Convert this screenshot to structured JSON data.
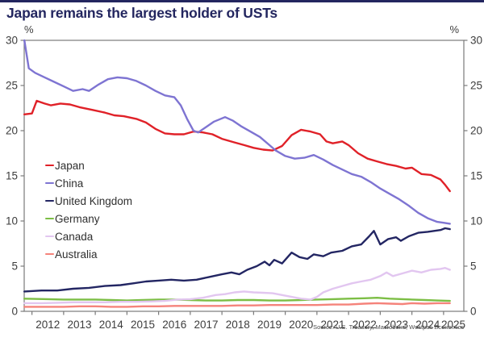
{
  "page": {
    "title": "Japan remains the largest holder of USTs",
    "source": "Source: U.S. Treasury, Macrobond, Westpac Economics"
  },
  "chart_data": {
    "type": "line",
    "title": "Japan remains the largest holder of USTs",
    "unit_left": "%",
    "unit_right": "%",
    "ylim": [
      0,
      30
    ],
    "y_ticks": [
      0,
      5,
      10,
      15,
      20,
      25,
      30
    ],
    "x_domain": [
      2011.755,
      2025.64
    ],
    "x_year_ticks": [
      2012,
      2013,
      2014,
      2015,
      2016,
      2017,
      2018,
      2019,
      2020,
      2021,
      2022,
      2023,
      2024,
      2025
    ],
    "x_labels": [
      "2012",
      "2013",
      "2014",
      "2015",
      "2016",
      "2017",
      "2018",
      "2019",
      "2020",
      "2021",
      "2022",
      "2023",
      "2024",
      "2025"
    ],
    "grid": false,
    "legend_position": "middle-left",
    "axis_color": "#7a7a7a",
    "label_color": "#3d3d3d",
    "series": [
      {
        "name": "Japan",
        "color": "#e02128",
        "points": [
          [
            2011.76,
            21.8
          ],
          [
            2012.0,
            21.9
          ],
          [
            2012.15,
            23.3
          ],
          [
            2012.4,
            23.0
          ],
          [
            2012.6,
            22.8
          ],
          [
            2012.9,
            23.0
          ],
          [
            2013.2,
            22.9
          ],
          [
            2013.5,
            22.6
          ],
          [
            2013.9,
            22.3
          ],
          [
            2014.3,
            22.0
          ],
          [
            2014.6,
            21.7
          ],
          [
            2014.9,
            21.6
          ],
          [
            2015.3,
            21.3
          ],
          [
            2015.6,
            20.9
          ],
          [
            2015.9,
            20.2
          ],
          [
            2016.2,
            19.7
          ],
          [
            2016.5,
            19.6
          ],
          [
            2016.8,
            19.6
          ],
          [
            2017.1,
            19.9
          ],
          [
            2017.4,
            19.8
          ],
          [
            2017.7,
            19.6
          ],
          [
            2018.0,
            19.1
          ],
          [
            2018.4,
            18.7
          ],
          [
            2018.7,
            18.4
          ],
          [
            2019.0,
            18.1
          ],
          [
            2019.3,
            17.9
          ],
          [
            2019.6,
            17.8
          ],
          [
            2019.9,
            18.3
          ],
          [
            2020.2,
            19.5
          ],
          [
            2020.5,
            20.1
          ],
          [
            2020.8,
            19.9
          ],
          [
            2021.1,
            19.6
          ],
          [
            2021.3,
            18.8
          ],
          [
            2021.5,
            18.6
          ],
          [
            2021.8,
            18.8
          ],
          [
            2022.0,
            18.4
          ],
          [
            2022.3,
            17.5
          ],
          [
            2022.6,
            16.9
          ],
          [
            2022.9,
            16.6
          ],
          [
            2023.2,
            16.3
          ],
          [
            2023.5,
            16.1
          ],
          [
            2023.8,
            15.8
          ],
          [
            2024.0,
            15.9
          ],
          [
            2024.3,
            15.2
          ],
          [
            2024.6,
            15.1
          ],
          [
            2024.9,
            14.6
          ],
          [
            2025.05,
            14.0
          ],
          [
            2025.2,
            13.3
          ]
        ]
      },
      {
        "name": "China",
        "color": "#7e74d2",
        "points": [
          [
            2011.76,
            30.0
          ],
          [
            2011.9,
            26.9
          ],
          [
            2012.1,
            26.4
          ],
          [
            2012.4,
            25.9
          ],
          [
            2012.7,
            25.4
          ],
          [
            2013.0,
            24.9
          ],
          [
            2013.3,
            24.4
          ],
          [
            2013.6,
            24.6
          ],
          [
            2013.8,
            24.4
          ],
          [
            2014.1,
            25.1
          ],
          [
            2014.4,
            25.7
          ],
          [
            2014.7,
            25.9
          ],
          [
            2015.0,
            25.8
          ],
          [
            2015.3,
            25.5
          ],
          [
            2015.6,
            25.0
          ],
          [
            2015.9,
            24.4
          ],
          [
            2016.2,
            23.9
          ],
          [
            2016.5,
            23.7
          ],
          [
            2016.7,
            22.8
          ],
          [
            2016.9,
            21.3
          ],
          [
            2017.1,
            20.0
          ],
          [
            2017.25,
            19.8
          ],
          [
            2017.5,
            20.4
          ],
          [
            2017.75,
            21.0
          ],
          [
            2018.1,
            21.5
          ],
          [
            2018.35,
            21.1
          ],
          [
            2018.6,
            20.5
          ],
          [
            2018.9,
            19.9
          ],
          [
            2019.2,
            19.3
          ],
          [
            2019.5,
            18.4
          ],
          [
            2019.7,
            17.8
          ],
          [
            2020.0,
            17.2
          ],
          [
            2020.3,
            16.9
          ],
          [
            2020.6,
            17.0
          ],
          [
            2020.9,
            17.3
          ],
          [
            2021.2,
            16.8
          ],
          [
            2021.5,
            16.2
          ],
          [
            2021.8,
            15.7
          ],
          [
            2022.1,
            15.2
          ],
          [
            2022.4,
            14.9
          ],
          [
            2022.7,
            14.3
          ],
          [
            2023.0,
            13.6
          ],
          [
            2023.3,
            13.0
          ],
          [
            2023.6,
            12.4
          ],
          [
            2023.9,
            11.7
          ],
          [
            2024.2,
            10.9
          ],
          [
            2024.5,
            10.3
          ],
          [
            2024.8,
            9.9
          ],
          [
            2025.0,
            9.8
          ],
          [
            2025.2,
            9.7
          ]
        ]
      },
      {
        "name": "United Kingdom",
        "color": "#232663",
        "points": [
          [
            2011.76,
            2.2
          ],
          [
            2012.3,
            2.3
          ],
          [
            2012.8,
            2.3
          ],
          [
            2013.3,
            2.5
          ],
          [
            2013.8,
            2.6
          ],
          [
            2014.3,
            2.8
          ],
          [
            2014.8,
            2.9
          ],
          [
            2015.2,
            3.1
          ],
          [
            2015.6,
            3.3
          ],
          [
            2016.0,
            3.4
          ],
          [
            2016.4,
            3.5
          ],
          [
            2016.8,
            3.4
          ],
          [
            2017.2,
            3.5
          ],
          [
            2017.6,
            3.8
          ],
          [
            2018.0,
            4.1
          ],
          [
            2018.3,
            4.3
          ],
          [
            2018.55,
            4.1
          ],
          [
            2018.8,
            4.6
          ],
          [
            2019.1,
            5.0
          ],
          [
            2019.35,
            5.5
          ],
          [
            2019.5,
            5.1
          ],
          [
            2019.65,
            5.7
          ],
          [
            2019.9,
            5.3
          ],
          [
            2020.2,
            6.5
          ],
          [
            2020.45,
            6.0
          ],
          [
            2020.7,
            5.8
          ],
          [
            2020.9,
            6.3
          ],
          [
            2021.2,
            6.1
          ],
          [
            2021.45,
            6.5
          ],
          [
            2021.8,
            6.7
          ],
          [
            2022.1,
            7.2
          ],
          [
            2022.4,
            7.4
          ],
          [
            2022.65,
            8.3
          ],
          [
            2022.8,
            8.9
          ],
          [
            2023.0,
            7.4
          ],
          [
            2023.25,
            8.0
          ],
          [
            2023.5,
            8.2
          ],
          [
            2023.65,
            7.8
          ],
          [
            2023.9,
            8.3
          ],
          [
            2024.2,
            8.7
          ],
          [
            2024.5,
            8.8
          ],
          [
            2024.7,
            8.9
          ],
          [
            2024.9,
            9.0
          ],
          [
            2025.05,
            9.2
          ],
          [
            2025.2,
            9.1
          ]
        ]
      },
      {
        "name": "Germany",
        "color": "#7cbe45",
        "points": [
          [
            2011.76,
            1.4
          ],
          [
            2012.5,
            1.35
          ],
          [
            2013.0,
            1.3
          ],
          [
            2013.5,
            1.3
          ],
          [
            2014.0,
            1.3
          ],
          [
            2014.5,
            1.25
          ],
          [
            2015.0,
            1.2
          ],
          [
            2015.5,
            1.25
          ],
          [
            2016.0,
            1.3
          ],
          [
            2016.5,
            1.3
          ],
          [
            2017.0,
            1.25
          ],
          [
            2017.5,
            1.2
          ],
          [
            2018.0,
            1.2
          ],
          [
            2018.5,
            1.25
          ],
          [
            2019.0,
            1.25
          ],
          [
            2019.5,
            1.2
          ],
          [
            2020.0,
            1.2
          ],
          [
            2020.5,
            1.25
          ],
          [
            2021.0,
            1.3
          ],
          [
            2021.5,
            1.35
          ],
          [
            2022.0,
            1.4
          ],
          [
            2022.5,
            1.45
          ],
          [
            2022.9,
            1.5
          ],
          [
            2023.3,
            1.4
          ],
          [
            2023.7,
            1.35
          ],
          [
            2024.0,
            1.3
          ],
          [
            2024.4,
            1.25
          ],
          [
            2024.8,
            1.2
          ],
          [
            2025.2,
            1.15
          ]
        ]
      },
      {
        "name": "Canada",
        "color": "#e2c6f0",
        "points": [
          [
            2011.76,
            0.9
          ],
          [
            2012.3,
            0.9
          ],
          [
            2012.8,
            0.95
          ],
          [
            2013.3,
            1.0
          ],
          [
            2013.8,
            1.0
          ],
          [
            2014.3,
            1.0
          ],
          [
            2014.8,
            1.05
          ],
          [
            2015.3,
            1.05
          ],
          [
            2015.8,
            1.1
          ],
          [
            2016.2,
            1.15
          ],
          [
            2016.6,
            1.3
          ],
          [
            2017.0,
            1.35
          ],
          [
            2017.4,
            1.5
          ],
          [
            2017.8,
            1.8
          ],
          [
            2018.1,
            1.9
          ],
          [
            2018.4,
            2.1
          ],
          [
            2018.7,
            2.2
          ],
          [
            2019.0,
            2.1
          ],
          [
            2019.3,
            2.05
          ],
          [
            2019.6,
            2.0
          ],
          [
            2019.9,
            1.8
          ],
          [
            2020.2,
            1.6
          ],
          [
            2020.5,
            1.4
          ],
          [
            2020.8,
            1.3
          ],
          [
            2021.0,
            1.6
          ],
          [
            2021.2,
            2.1
          ],
          [
            2021.5,
            2.5
          ],
          [
            2021.8,
            2.8
          ],
          [
            2022.1,
            3.1
          ],
          [
            2022.4,
            3.3
          ],
          [
            2022.7,
            3.5
          ],
          [
            2023.0,
            3.9
          ],
          [
            2023.2,
            4.3
          ],
          [
            2023.4,
            3.9
          ],
          [
            2023.7,
            4.2
          ],
          [
            2024.0,
            4.5
          ],
          [
            2024.3,
            4.3
          ],
          [
            2024.6,
            4.6
          ],
          [
            2024.9,
            4.7
          ],
          [
            2025.05,
            4.8
          ],
          [
            2025.2,
            4.6
          ]
        ]
      },
      {
        "name": "Australia",
        "color": "#f5837b",
        "points": [
          [
            2011.76,
            0.5
          ],
          [
            2012.5,
            0.5
          ],
          [
            2013.0,
            0.5
          ],
          [
            2013.5,
            0.55
          ],
          [
            2014.0,
            0.55
          ],
          [
            2014.5,
            0.5
          ],
          [
            2015.0,
            0.5
          ],
          [
            2015.5,
            0.55
          ],
          [
            2016.0,
            0.55
          ],
          [
            2016.5,
            0.6
          ],
          [
            2017.0,
            0.6
          ],
          [
            2017.5,
            0.6
          ],
          [
            2018.0,
            0.6
          ],
          [
            2018.5,
            0.65
          ],
          [
            2019.0,
            0.65
          ],
          [
            2019.5,
            0.7
          ],
          [
            2020.0,
            0.7
          ],
          [
            2020.5,
            0.7
          ],
          [
            2021.0,
            0.7
          ],
          [
            2021.5,
            0.75
          ],
          [
            2022.0,
            0.75
          ],
          [
            2022.5,
            0.85
          ],
          [
            2022.9,
            0.9
          ],
          [
            2023.3,
            0.85
          ],
          [
            2023.7,
            0.8
          ],
          [
            2024.0,
            0.9
          ],
          [
            2024.4,
            0.85
          ],
          [
            2024.8,
            0.9
          ],
          [
            2025.2,
            0.9
          ]
        ]
      }
    ]
  }
}
